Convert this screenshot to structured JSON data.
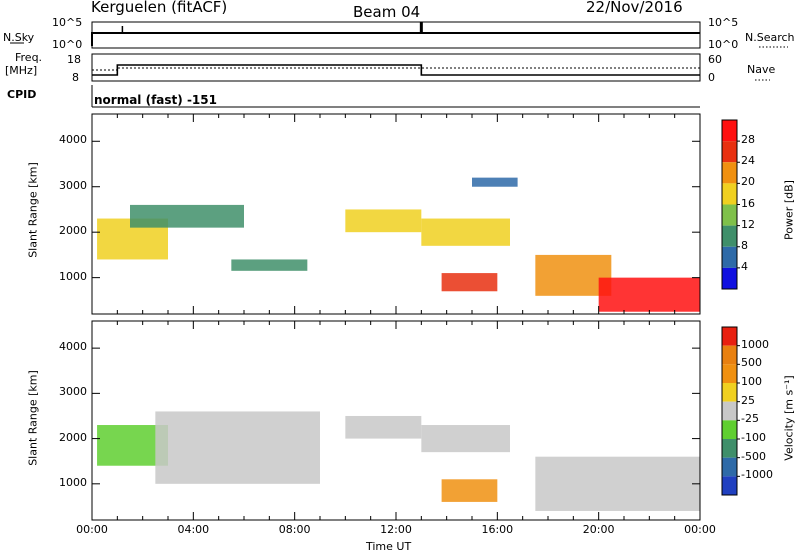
{
  "header": {
    "radar": "Kerguelen (fitACF)",
    "beam": "Beam 04",
    "date": "22/Nov/2016"
  },
  "status_panels": {
    "nsky_label": "N.Sky",
    "nsky_ticks": [
      "10^5",
      "10^0"
    ],
    "nsearch_label": "N.Search",
    "nsearch_ticks": [
      "10^5",
      "10^0"
    ],
    "freq_label_1": "Freq.",
    "freq_label_2": "[MHz]",
    "freq_ticks": [
      "18",
      "8"
    ],
    "nave_label": "Nave",
    "nave_ticks": [
      "60",
      "0"
    ],
    "cpid_label": "CPID",
    "cpid_value": "normal (fast) -151"
  },
  "chart_data": [
    {
      "type": "heatmap",
      "title": "",
      "ylabel": "Slant Range [km]",
      "xlabel": "Time UT",
      "x_ticks": [
        "00:00",
        "04:00",
        "08:00",
        "12:00",
        "16:00",
        "20:00",
        "00:00"
      ],
      "y_ticks": [
        "4000",
        "3000",
        "2000",
        "1000"
      ],
      "ylim": [
        200,
        4600
      ],
      "colorbar_label": "Power [dB]",
      "colorbar_ticks": [
        "28",
        "24",
        "20",
        "16",
        "12",
        "8",
        "4"
      ],
      "colors": [
        "#1010e0",
        "#2e6aa8",
        "#3f8f6a",
        "#7fc04a",
        "#f0d020",
        "#f09010",
        "#e83010",
        "#ff1010"
      ],
      "regions": [
        {
          "t": [
            0.2,
            3.0
          ],
          "r": [
            1400,
            2300
          ],
          "level": 4
        },
        {
          "t": [
            1.5,
            6.0
          ],
          "r": [
            2100,
            2600
          ],
          "level": 2
        },
        {
          "t": [
            5.5,
            8.5
          ],
          "r": [
            1150,
            1400
          ],
          "level": 2
        },
        {
          "t": [
            10.0,
            13.0
          ],
          "r": [
            2000,
            2500
          ],
          "level": 4
        },
        {
          "t": [
            13.0,
            16.5
          ],
          "r": [
            1700,
            2300
          ],
          "level": 4
        },
        {
          "t": [
            13.8,
            16.0
          ],
          "r": [
            700,
            1100
          ],
          "level": 6
        },
        {
          "t": [
            15.0,
            16.8
          ],
          "r": [
            3000,
            3200
          ],
          "level": 1
        },
        {
          "t": [
            17.5,
            20.5
          ],
          "r": [
            600,
            1500
          ],
          "level": 5
        },
        {
          "t": [
            20.0,
            24.0
          ],
          "r": [
            250,
            1000
          ],
          "level": 7
        }
      ]
    },
    {
      "type": "heatmap",
      "title": "",
      "ylabel": "Slant Range [km]",
      "xlabel": "Time UT",
      "x_ticks": [
        "00:00",
        "04:00",
        "08:00",
        "12:00",
        "16:00",
        "20:00",
        "00:00"
      ],
      "y_ticks": [
        "4000",
        "3000",
        "2000",
        "1000"
      ],
      "ylim": [
        200,
        4600
      ],
      "colorbar_label": "Velocity [m s⁻¹]",
      "colorbar_ticks": [
        "1000",
        "500",
        "100",
        "25",
        "-25",
        "-100",
        "-500",
        "-1000"
      ],
      "colors": [
        "#2040c0",
        "#2e6aa8",
        "#3f8f6a",
        "#5fcf30",
        "#c8c8c8",
        "#f0d020",
        "#f09010",
        "#e88010",
        "#e82010"
      ],
      "regions": [
        {
          "t": [
            0.2,
            3.0
          ],
          "r": [
            1400,
            2300
          ],
          "level": 3
        },
        {
          "t": [
            2.5,
            9.0
          ],
          "r": [
            1000,
            2600
          ],
          "level": 4
        },
        {
          "t": [
            10.0,
            13.0
          ],
          "r": [
            2000,
            2500
          ],
          "level": 4
        },
        {
          "t": [
            13.0,
            16.5
          ],
          "r": [
            1700,
            2300
          ],
          "level": 4
        },
        {
          "t": [
            13.8,
            16.0
          ],
          "r": [
            600,
            1100
          ],
          "level": 6
        },
        {
          "t": [
            17.5,
            24.0
          ],
          "r": [
            400,
            1600
          ],
          "level": 4
        }
      ]
    }
  ]
}
